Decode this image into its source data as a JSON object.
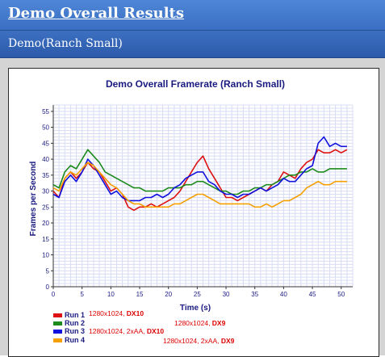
{
  "header": {
    "title": "Demo Overall Results",
    "subtitle": "Demo(Ranch Small)"
  },
  "chart_data": {
    "type": "line",
    "title": "Demo Overall Framerate (Ranch Small)",
    "xlabel": "Time (s)",
    "ylabel": "Frames per Second",
    "xlim": [
      0,
      52
    ],
    "ylim": [
      0,
      57
    ],
    "xticks": [
      0,
      5,
      10,
      15,
      20,
      25,
      30,
      35,
      40,
      45,
      50
    ],
    "yticks": [
      0,
      5,
      10,
      15,
      20,
      25,
      30,
      35,
      40,
      45,
      50,
      55
    ],
    "grid": true,
    "legend_position": "bottom-left",
    "series": [
      {
        "name": "Run 1",
        "setting_plain": "1280x1024, ",
        "setting_bold": "DX10",
        "color": "#dd1111",
        "x": [
          0,
          1,
          2,
          3,
          4,
          5,
          6,
          7,
          8,
          9,
          10,
          11,
          12,
          13,
          14,
          15,
          16,
          17,
          18,
          19,
          20,
          21,
          22,
          23,
          24,
          25,
          26,
          27,
          28,
          29,
          30,
          31,
          32,
          33,
          34,
          35,
          36,
          37,
          38,
          39,
          40,
          41,
          42,
          43,
          44,
          45,
          46,
          47,
          48,
          49,
          50,
          51
        ],
        "y": [
          30,
          28,
          34,
          36,
          34,
          36,
          39,
          37,
          36,
          33,
          30,
          31,
          29,
          25,
          24,
          25,
          25,
          26,
          25,
          26,
          27,
          28,
          30,
          33,
          36,
          39,
          41,
          37,
          34,
          31,
          28,
          28,
          27,
          28,
          29,
          30,
          31,
          30,
          32,
          33,
          36,
          35,
          34,
          37,
          39,
          40,
          43,
          42,
          42,
          43,
          42,
          43
        ]
      },
      {
        "name": "Run 2",
        "setting_plain": "1280x1024, ",
        "setting_bold": "DX9",
        "color": "#1c8a1c",
        "x": [
          0,
          1,
          2,
          3,
          4,
          5,
          6,
          7,
          8,
          9,
          10,
          11,
          12,
          13,
          14,
          15,
          16,
          17,
          18,
          19,
          20,
          21,
          22,
          23,
          24,
          25,
          26,
          27,
          28,
          29,
          30,
          31,
          32,
          33,
          34,
          35,
          36,
          37,
          38,
          39,
          40,
          41,
          42,
          43,
          44,
          45,
          46,
          47,
          48,
          49,
          50,
          51
        ],
        "y": [
          32,
          31,
          36,
          38,
          37,
          40,
          43,
          41,
          39,
          36,
          35,
          34,
          33,
          32,
          31,
          31,
          30,
          30,
          30,
          30,
          31,
          31,
          31,
          32,
          32,
          33,
          33,
          32,
          31,
          30,
          30,
          29,
          29,
          30,
          30,
          31,
          31,
          32,
          32,
          33,
          34,
          35,
          35,
          36,
          36,
          37,
          36,
          36,
          37,
          37,
          37,
          37
        ]
      },
      {
        "name": "Run 3",
        "setting_plain": "1280x1024, 2xAA, ",
        "setting_bold": "DX10",
        "color": "#1111dd",
        "x": [
          0,
          1,
          2,
          3,
          4,
          5,
          6,
          7,
          8,
          9,
          10,
          11,
          12,
          13,
          14,
          15,
          16,
          17,
          18,
          19,
          20,
          21,
          22,
          23,
          24,
          25,
          26,
          27,
          28,
          29,
          30,
          31,
          32,
          33,
          34,
          35,
          36,
          37,
          38,
          39,
          40,
          41,
          42,
          43,
          44,
          45,
          46,
          47,
          48,
          49,
          50,
          51
        ],
        "y": [
          29,
          28,
          33,
          35,
          33,
          36,
          40,
          38,
          35,
          32,
          29,
          30,
          28,
          27,
          27,
          27,
          28,
          28,
          29,
          28,
          29,
          31,
          32,
          34,
          35,
          36,
          36,
          33,
          32,
          30,
          29,
          29,
          28,
          29,
          29,
          30,
          31,
          30,
          31,
          32,
          34,
          33,
          33,
          35,
          37,
          38,
          45,
          47,
          44,
          45,
          44,
          44
        ]
      },
      {
        "name": "Run 4",
        "setting_plain": "1280x1024, 2xAA, ",
        "setting_bold": "DX9",
        "color": "#f5a000",
        "x": [
          0,
          1,
          2,
          3,
          4,
          5,
          6,
          7,
          8,
          9,
          10,
          11,
          12,
          13,
          14,
          15,
          16,
          17,
          18,
          19,
          20,
          21,
          22,
          23,
          24,
          25,
          26,
          27,
          28,
          29,
          30,
          31,
          32,
          33,
          34,
          35,
          36,
          37,
          38,
          39,
          40,
          41,
          42,
          43,
          44,
          45,
          46,
          47,
          48,
          49,
          50,
          51
        ],
        "y": [
          31,
          30,
          34,
          36,
          35,
          37,
          39,
          38,
          36,
          34,
          32,
          31,
          29,
          27,
          26,
          26,
          25,
          25,
          25,
          25,
          25,
          26,
          26,
          27,
          28,
          29,
          29,
          28,
          27,
          26,
          26,
          26,
          26,
          26,
          26,
          25,
          25,
          26,
          25,
          26,
          27,
          27,
          28,
          29,
          31,
          32,
          33,
          32,
          32,
          33,
          33,
          33
        ]
      }
    ]
  }
}
